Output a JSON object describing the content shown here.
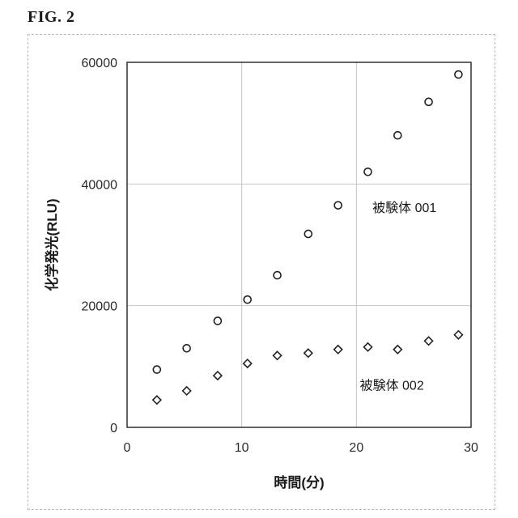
{
  "figure_label": "FIG. 2",
  "chart_data": {
    "type": "scatter",
    "xlabel": "時間(分)",
    "ylabel": "化学発光(RLU)",
    "xlim": [
      0,
      30
    ],
    "ylim": [
      0,
      60000
    ],
    "x_ticks": [
      "0",
      "10",
      "20",
      "30"
    ],
    "y_ticks": [
      "0",
      "20000",
      "40000",
      "60000"
    ],
    "grid": true,
    "annotations": [
      "被験体 001",
      "被験体 002"
    ],
    "series": [
      {
        "marker": "circle",
        "x": [
          2.6,
          5.2,
          7.9,
          10.5,
          13.1,
          15.8,
          18.4,
          21.0,
          23.6,
          26.3,
          28.9
        ],
        "y": [
          9500,
          13000,
          17500,
          21000,
          25000,
          31800,
          36500,
          42000,
          48000,
          53500,
          58000
        ]
      },
      {
        "marker": "diamond",
        "x": [
          2.6,
          5.2,
          7.9,
          10.5,
          13.1,
          15.8,
          18.4,
          21.0,
          23.6,
          26.3,
          28.9
        ],
        "y": [
          4500,
          6000,
          8500,
          10500,
          11800,
          12200,
          12800,
          13200,
          12800,
          14200,
          15200
        ]
      }
    ]
  }
}
